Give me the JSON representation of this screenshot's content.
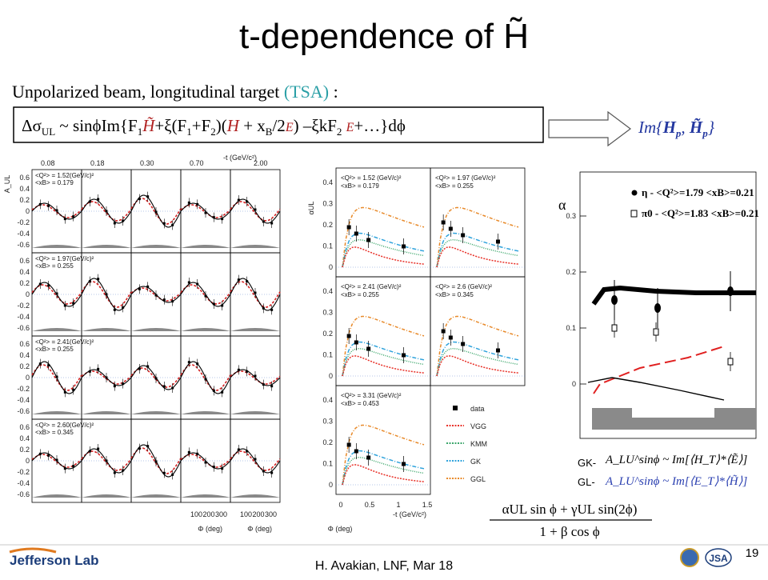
{
  "title": "t-dependence of H̃",
  "subtitle": "Unpolarized beam, longitudinal target ",
  "subtitle_tsa": "(TSA)",
  "subtitle_end": " :",
  "formula": [
    "Δσ",
    "UL",
    " ~ sinϕIm{F",
    "1",
    "H̃",
    "+ξ(F",
    "1",
    "+F",
    "2",
    ")(",
    "H",
    " + x",
    "B",
    "/2",
    "E",
    ") –ξkF",
    "2",
    " ",
    "E",
    "+…}dϕ"
  ],
  "result": [
    "Im{",
    "H",
    "p",
    ", ",
    "H̃",
    "p",
    "}"
  ],
  "left_plot": {
    "top_axis": "-t (GeV/c²)",
    "top_ticks": [
      "0.08",
      "0.18",
      "0.30",
      "0.70",
      "2.00"
    ],
    "y_label": "A_UL",
    "yticks": [
      "0.6",
      "0.4",
      "0.2",
      "0",
      "-0.2",
      "-0.4",
      "-0.6"
    ],
    "xticks": [
      "100",
      "200",
      "300"
    ],
    "x_label": "Φ (deg)",
    "rows": [
      {
        "q2": "<Q²> = 1.52(GeV/c)²",
        "xb": "<xB> = 0.179"
      },
      {
        "q2": "<Q²> = 1.97(GeV/c)²",
        "xb": "<xB> = 0.255"
      },
      {
        "q2": "<Q²> = 2.41(GeV/c)²",
        "xb": "<xB> = 0.255"
      },
      {
        "q2": "<Q²> = 2.60(GeV/c)²",
        "xb": "<xB> = 0.345"
      }
    ]
  },
  "middle_plot": {
    "y_label": "αUL",
    "yticks": [
      "0.4",
      "0.3",
      "0.2",
      "0.1",
      "0"
    ],
    "xticks": [
      "0",
      "0.5",
      "1",
      "1.5"
    ],
    "x_label": "-t (GeV/c²)",
    "phi_label": "Φ (deg)",
    "panels": [
      {
        "q2": "<Q²> = 1.52 (GeV/c)²",
        "xb": "<xB> = 0.179"
      },
      {
        "q2": "<Q²> = 1.97 (GeV/c)²",
        "xb": "<xB> = 0.255"
      },
      {
        "q2": "<Q²> = 2.41 (GeV/c)²",
        "xb": "<xB> = 0.255"
      },
      {
        "q2": "<Q²> = 2.6 (GeV/c)²",
        "xb": "<xB> = 0.345"
      },
      {
        "q2": "<Q²> = 3.31 (GeV/c)²",
        "xb": "<xB> = 0.453"
      }
    ],
    "legend": [
      {
        "name": "data",
        "color": "#000000"
      },
      {
        "name": "VGG",
        "color": "#e8322a"
      },
      {
        "name": "KMM",
        "color": "#3aa66a"
      },
      {
        "name": "GK",
        "color": "#2fa3dc"
      },
      {
        "name": "GGL",
        "color": "#e88a2a"
      }
    ]
  },
  "right_plot": {
    "y_label": "α",
    "yticks": [
      "0.3",
      "0.2",
      "0.1",
      "0"
    ],
    "legend": [
      "η - <Q²>=1.79 <xB>=0.21",
      "π0 - <Q²>=1.83 <xB>=0.21"
    ],
    "gk": "GK-",
    "gk_formula": "A_LU^sinϕ ~ Im[⟨H_T⟩*⟨Ẽ⟩]",
    "gl": "GL-",
    "gl_formula": "A_LU^sinϕ ~ Im[⟨E_T⟩*⟨H̃⟩]"
  },
  "bottom_formula": {
    "numerator": "αUL sin ϕ + γUL sin(2ϕ)",
    "denominator": "1 + β cos ϕ"
  },
  "footer": {
    "logo": "Jefferson Lab",
    "author": "H. Avakian, LNF, Mar 18",
    "partner": "JSA",
    "page": "19"
  }
}
